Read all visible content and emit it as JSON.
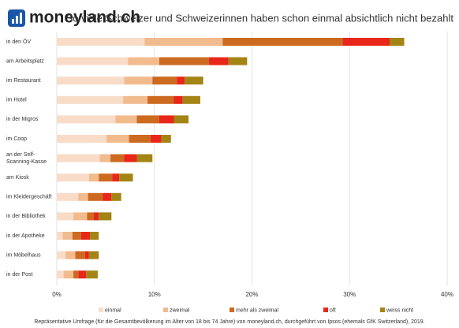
{
  "chart_data": {
    "type": "stacked-bar-horizontal",
    "brand": "moneyland.ch",
    "title": "So viele Schweizer und Schweizerinnen haben schon einmal absichtlich nicht bezahlt",
    "source": "Repräsentative Umfrage (für die Gesamtbevölkerung im Alter von 18 bis 74 Jahre) von moneyland.ch, durchgeführt von Ipsos (ehemals GfK Switzerland), 2019.",
    "categories": [
      "in den ÖV",
      "am Arbeitsplatz",
      "im Restaurant",
      "im Hotel",
      "in der Migros",
      "im Coop",
      "an der Self-\nScanning-Kasse",
      "am Kiosk",
      "im Kleidergeschäft",
      "in der Bibliothek",
      "in der Apotheke",
      "im Möbelhaus",
      "in der Post"
    ],
    "series": [
      {
        "name": "einmal",
        "color": "#f8dcc8",
        "values": [
          9,
          7.3,
          6.9,
          6.8,
          6.0,
          5.1,
          4.4,
          3.3,
          2.2,
          1.7,
          0.6,
          0.9,
          0.7
        ]
      },
      {
        "name": "zweimal",
        "color": "#f2bb8e",
        "values": [
          8,
          3.2,
          2.9,
          2.5,
          2.2,
          2.3,
          1.1,
          1.0,
          1.0,
          1.4,
          1.0,
          1.0,
          1.0
        ]
      },
      {
        "name": "mehr als zweimal",
        "color": "#cc6a20",
        "values": [
          12.3,
          5.1,
          2.5,
          2.7,
          2.3,
          2.2,
          1.4,
          1.4,
          1.5,
          0.7,
          0.9,
          1.0,
          0.5
        ]
      },
      {
        "name": "oft",
        "color": "#e8261a",
        "values": [
          4.8,
          2.0,
          0.8,
          0.9,
          1.5,
          1.1,
          1.3,
          0.7,
          0.9,
          0.5,
          0.9,
          0.4,
          0.8
        ]
      },
      {
        "name": "weiss nicht",
        "color": "#a38414",
        "values": [
          1.5,
          1.9,
          1.9,
          1.8,
          1.5,
          1.0,
          1.6,
          1.4,
          1.0,
          1.3,
          0.9,
          1.0,
          1.2
        ]
      }
    ],
    "xlim": [
      0,
      40
    ],
    "xticks": [
      {
        "value": 0,
        "label": "0%"
      },
      {
        "value": 10,
        "label": "10%"
      },
      {
        "value": 20,
        "label": "20%"
      },
      {
        "value": 30,
        "label": "30%"
      },
      {
        "value": 40,
        "label": "40%"
      }
    ],
    "grid": true
  }
}
